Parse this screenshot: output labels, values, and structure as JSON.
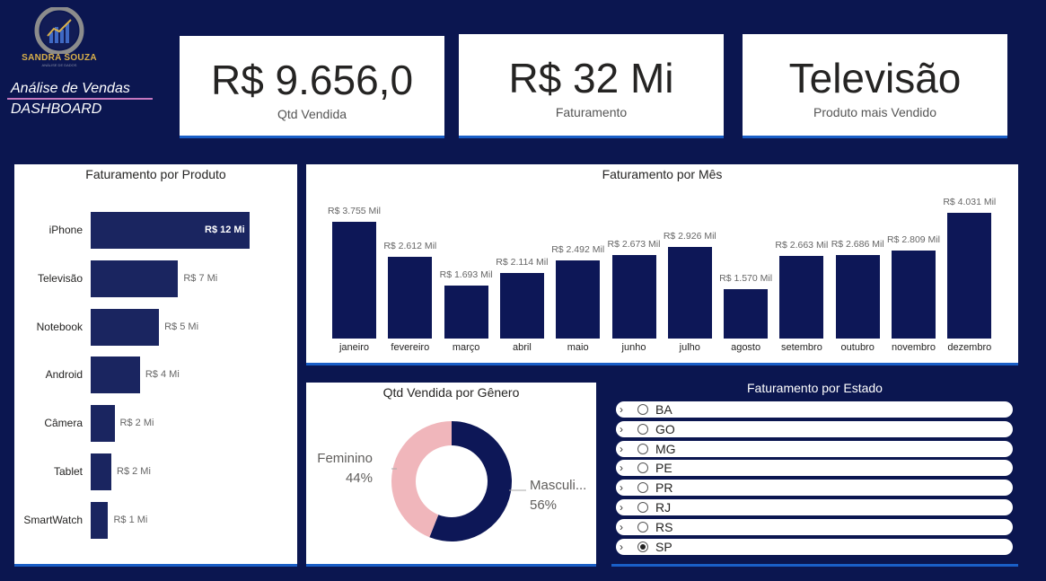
{
  "brand": {
    "name": "SANDRA SOUZA",
    "tagline": "ANÁLISE DE DADOS"
  },
  "header": {
    "title": "Análise de Vendas",
    "subtitle": "DASHBOARD"
  },
  "kpis": [
    {
      "value": "R$ 9.656,0",
      "label": "Qtd Vendida"
    },
    {
      "value": "R$ 32 Mi",
      "label": "Faturamento"
    },
    {
      "value": "Televisão",
      "label": "Produto mais Vendido"
    }
  ],
  "colors": {
    "background": "#0b1650",
    "bar": "#0d1757",
    "accent": "#1a5fc7",
    "female": "#f0b6bb",
    "male": "#0d1757"
  },
  "chart_data": [
    {
      "type": "bar",
      "orientation": "horizontal",
      "title": "Faturamento por Produto",
      "categories": [
        "iPhone",
        "Televisão",
        "Notebook",
        "Android",
        "Câmera",
        "Tablet",
        "SmartWatch"
      ],
      "values": [
        12,
        7,
        5,
        4,
        2,
        2,
        1
      ],
      "value_labels": [
        "R$ 12 Mi",
        "R$ 7 Mi",
        "R$ 5 Mi",
        "R$ 4 Mi",
        "R$ 2 Mi",
        "R$ 2 Mi",
        "R$ 1 Mi"
      ],
      "bar_fractions": [
        1.0,
        0.55,
        0.43,
        0.31,
        0.15,
        0.13,
        0.11
      ],
      "unit": "Mi"
    },
    {
      "type": "bar",
      "title": "Faturamento por Mês",
      "categories": [
        "janeiro",
        "fevereiro",
        "março",
        "abril",
        "maio",
        "junho",
        "julho",
        "agosto",
        "setembro",
        "outubro",
        "novembro",
        "dezembro"
      ],
      "values": [
        3755,
        2612,
        1693,
        2114,
        2492,
        2673,
        2926,
        1570,
        2663,
        2686,
        2809,
        4031
      ],
      "value_labels": [
        "R$ 3.755 Mil",
        "R$ 2.612 Mil",
        "R$ 1.693 Mil",
        "R$ 2.114 Mil",
        "R$ 2.492 Mil",
        "R$ 2.673 Mil",
        "R$ 2.926 Mil",
        "R$ 1.570 Mil",
        "R$ 2.663 Mil",
        "R$ 2.686 Mil",
        "R$ 2.809 Mil",
        "R$ 4.031 Mil"
      ],
      "unit": "Mil"
    },
    {
      "type": "pie",
      "variant": "donut",
      "title": "Qtd Vendida por Gênero",
      "categories": [
        "Feminino",
        "Masculino"
      ],
      "values": [
        44,
        56
      ],
      "display_labels": [
        "Feminino",
        "Masculi..."
      ],
      "percent_labels": [
        "44%",
        "56%"
      ]
    }
  ],
  "state_filter": {
    "title": "Faturamento por Estado",
    "items": [
      {
        "name": "BA",
        "selected": false
      },
      {
        "name": "GO",
        "selected": false
      },
      {
        "name": "MG",
        "selected": false
      },
      {
        "name": "PE",
        "selected": false
      },
      {
        "name": "PR",
        "selected": false
      },
      {
        "name": "RJ",
        "selected": false
      },
      {
        "name": "RS",
        "selected": false
      },
      {
        "name": "SP",
        "selected": true
      }
    ]
  }
}
